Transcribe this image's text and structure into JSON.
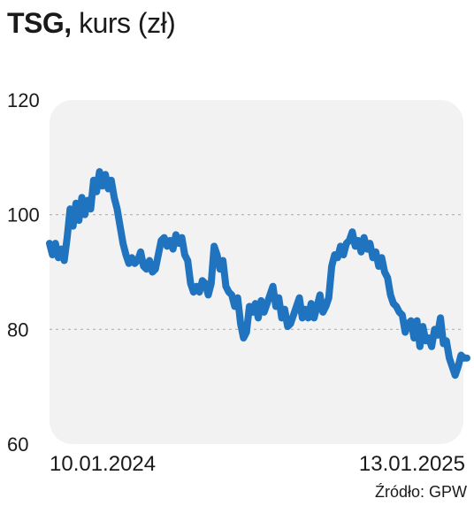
{
  "header": {
    "ticker": "TSG,",
    "subtitle": "kurs (zł)"
  },
  "source": "Źródło: GPW",
  "colors": {
    "line": "#1f73bf",
    "plot_background": "#f2f2f2",
    "gridline": "#b3b3b3"
  },
  "chart_data": {
    "type": "line",
    "title": "TSG, kurs (zł)",
    "xlabel": "",
    "ylabel": "",
    "ylim": [
      60,
      120
    ],
    "yticks": [
      60,
      80,
      100,
      120
    ],
    "grid": "horizontal dashed at 80 and 100",
    "x_start_label": "10.01.2024",
    "x_end_label": "13.01.2025",
    "series": [
      {
        "values": [
          95,
          93,
          95,
          92.5,
          94,
          92,
          96,
          101,
          98,
          102,
          99,
          103,
          100,
          102.5,
          101,
          106,
          104,
          107.5,
          105,
          107,
          104.5,
          106,
          103,
          101,
          98,
          95,
          93,
          91.5,
          92.5,
          91.5,
          92,
          93.5,
          91,
          90.5,
          92,
          90,
          90.5,
          93,
          95.5,
          96,
          94.5,
          95.5,
          94,
          96.5,
          95,
          96,
          93,
          92,
          88,
          86.5,
          87.5,
          86.5,
          88.5,
          88,
          86,
          88,
          94.5,
          93,
          90.5,
          92,
          87.5,
          86.5,
          86,
          84,
          85.5,
          81,
          78.5,
          79.5,
          84,
          83,
          84.5,
          82,
          85,
          83,
          84.5,
          86,
          87.5,
          84,
          85.5,
          82,
          83.5,
          80.5,
          81,
          82.5,
          84,
          85.5,
          82,
          83.5,
          82,
          84.5,
          82,
          84,
          86,
          83,
          84,
          85.5,
          91,
          93,
          92.5,
          94.5,
          93,
          95,
          95.5,
          97,
          94.5,
          95.5,
          93.5,
          96,
          94,
          95,
          92.5,
          93.5,
          91,
          92.5,
          90,
          89,
          86,
          84.5,
          84,
          83,
          82.5,
          79.5,
          81,
          81.5,
          78.5,
          81.5,
          77,
          80.5,
          78,
          78.5,
          77,
          80,
          79,
          82,
          77.5,
          78,
          75,
          73.5,
          72,
          73.5,
          75.5,
          75,
          75
        ]
      }
    ]
  }
}
